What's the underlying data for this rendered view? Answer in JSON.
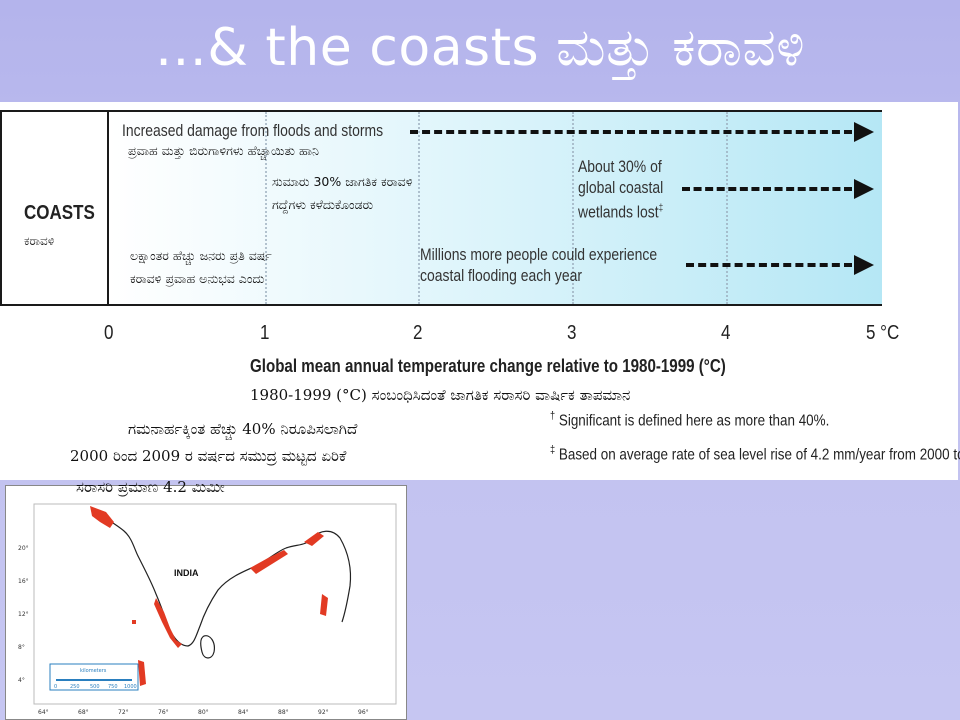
{
  "slide": {
    "title": "…& the coasts ಮತ್ತು ಕರಾವಳಿ"
  },
  "diagram": {
    "row_label": "COASTS",
    "row_label_kn": "ಕರಾವಳಿ",
    "impacts": [
      {
        "text_en": "Increased damage from floods and storms",
        "text_kn": "ಪ್ರವಾಹ ಮತ್ತು ಬಿರುಗಾಳಿಗಳು ಹೆಚ್ಚಾಯಿತು  ಹಾನಿ"
      },
      {
        "text_en": [
          "About 30% of",
          "global coastal",
          "wetlands lost"
        ],
        "note_marker": "‡",
        "text_kn": [
          "ಸುಮಾರು  30% ಜಾಗತಿಕ ಕರಾವಳಿ",
          "ಗದ್ದೆಗಳು  ಕಳೆದುಕೊಂಡರು"
        ]
      },
      {
        "text_en": [
          "Millions more people could experience",
          "coastal flooding each year"
        ],
        "text_kn": [
          "ಲಕ್ಷಾಂತರ ಹೆಚ್ಚು ಜನರು ಪ್ರತಿ ವರ್ಷ",
          "ಕರಾವಳಿ ಪ್ರವಾಹ ಅನುಭವ ಎಂದು"
        ]
      }
    ],
    "axis": {
      "ticks": [
        "0",
        "1",
        "2",
        "3",
        "4",
        "5 °C"
      ],
      "title": "Global mean annual temperature change relative to 1980-1999 (°C)"
    },
    "footnotes": [
      {
        "marker": "†",
        "text": "Significant is defined here as more than 40%."
      },
      {
        "marker": "‡",
        "text": "Based on average rate of sea level rise of 4.2 mm/year from 2000 to"
      }
    ],
    "captions_kn": [
      "1980-1999 (°C) ಸಂಬಂಧಿಸಿದಂತೆ ಜಾಗತಿಕ ಸರಾಸರಿ ವಾರ್ಷಿಕ ತಾಪಮಾನ",
      "ಗಮನಾರ್ಹಕ್ಕಿಂತ ಹೆಚ್ಚು 40% ನಿರೂಪಿಸಲಾಗಿದೆ",
      "2000 ರಿಂದ 2009 ರ ವರ್ಷದ ಸಮುದ್ರ ಮಟ್ಟದ ಏರಿಕೆ",
      "ಸರಾಸರಿ ಪ್ರಮಾಣ 4.2 ಮಿಮೀ"
    ]
  },
  "map": {
    "country_label": "INDIA",
    "lat_ticks": [
      "20°",
      "16°",
      "12°",
      "8°",
      "4°"
    ],
    "lon_ticks": [
      "64°",
      "68°",
      "72°",
      "76°",
      "80°",
      "84°",
      "88°",
      "92°",
      "96°"
    ],
    "scale_title": "kilometers",
    "scale_ticks": [
      "0",
      "250",
      "500",
      "750",
      "1000"
    ],
    "colors": {
      "coast_risk": "#e23a23",
      "land_outline": "#222222"
    }
  }
}
